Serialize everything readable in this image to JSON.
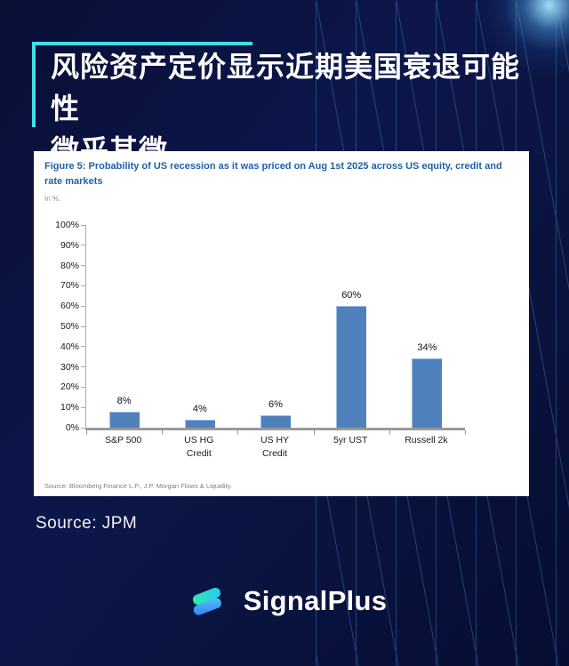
{
  "poster": {
    "title_line1": "风险资产定价显示近期美国衰退可能性",
    "title_line2": "微乎其微",
    "source_label": "Source: JPM",
    "brand_name": "SignalPlus",
    "colors": {
      "background": "#0B1441",
      "accent_cyan": "#3EDFE6",
      "bar_blue": "#4F81BD",
      "figure_title_blue": "#2060A8",
      "logo_teal": "#34E5AE",
      "logo_cyan": "#25CDF1",
      "logo_blue": "#2E7FF6",
      "logo_sky": "#55C7F2"
    }
  },
  "figure": {
    "title": "Figure 5: Probability of US recession as it was priced on Aug 1st 2025 across US equity, credit and rate markets",
    "unit_note": "In %.",
    "source_note": "Source: Bloomberg Finance L.P., J.P. Morgan Flows & Liquidity."
  },
  "chart_data": {
    "type": "bar",
    "title": "Probability of US recession as it was priced on Aug 1st 2025 across US equity, credit and rate markets",
    "categories": [
      "S&P 500",
      "US HG\nCredit",
      "US HY\nCredit",
      "5yr UST",
      "Russell 2k"
    ],
    "values": [
      8,
      4,
      6,
      60,
      34
    ],
    "data_labels": [
      "8%",
      "4%",
      "6%",
      "60%",
      "34%"
    ],
    "xlabel": "",
    "ylabel": "In %",
    "ylim": [
      0,
      100
    ],
    "yticks": [
      "100%",
      "90%",
      "80%",
      "70%",
      "60%",
      "50%",
      "40%",
      "30%",
      "20%",
      "10%",
      "0%"
    ],
    "grid": false,
    "legend": false,
    "bar_color": "#4F81BD"
  }
}
